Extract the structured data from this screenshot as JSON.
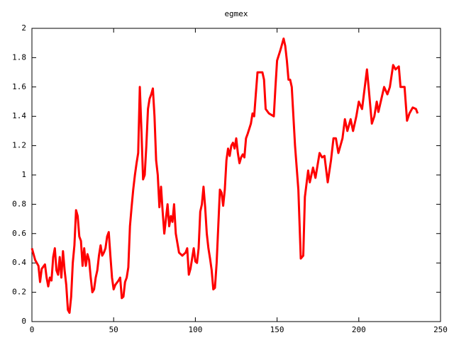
{
  "chart_data": {
    "type": "line",
    "title": "egmex",
    "color": "#ff0000",
    "x": [
      0,
      2,
      4,
      5,
      6,
      8,
      9,
      10,
      11,
      12,
      13,
      14,
      15,
      16,
      17,
      18,
      19,
      20,
      21,
      22,
      23,
      24,
      25,
      26,
      27,
      28,
      29,
      30,
      31,
      32,
      33,
      34,
      35,
      36,
      37,
      38,
      39,
      40,
      41,
      42,
      43,
      44,
      45,
      46,
      47,
      48,
      49,
      50,
      51,
      53,
      54,
      55,
      56,
      57,
      58,
      59,
      60,
      61,
      62,
      63,
      64,
      65,
      66,
      67,
      68,
      69,
      70,
      71,
      72,
      73,
      74,
      75,
      76,
      77,
      78,
      79,
      80,
      81,
      82,
      83,
      84,
      85,
      86,
      87,
      88,
      90,
      92,
      94,
      95,
      96,
      97,
      98,
      99,
      100,
      101,
      102,
      103,
      104,
      105,
      106,
      107,
      108,
      109,
      110,
      111,
      112,
      113,
      114,
      115,
      116,
      117,
      118,
      119,
      120,
      121,
      122,
      123,
      124,
      125,
      126,
      127,
      128,
      129,
      130,
      131,
      132,
      134,
      135,
      136,
      137,
      138,
      141,
      142,
      143,
      145,
      148,
      149,
      150,
      152,
      154,
      155,
      156,
      157,
      158,
      159,
      161,
      163,
      164.5,
      166,
      167,
      169,
      170,
      172,
      173.5,
      176,
      177.5,
      179,
      181,
      183,
      184.5,
      186,
      187.5,
      190,
      191.5,
      193,
      195,
      196.5,
      198.5,
      200,
      202,
      205,
      206,
      208,
      209.5,
      211,
      212,
      215.5,
      217.5,
      219,
      221,
      222.5,
      224.5,
      225.5,
      228,
      229.5,
      231,
      233,
      235,
      236
    ],
    "values": [
      0.5,
      0.42,
      0.38,
      0.27,
      0.36,
      0.39,
      0.3,
      0.24,
      0.3,
      0.28,
      0.44,
      0.5,
      0.35,
      0.32,
      0.44,
      0.3,
      0.48,
      0.35,
      0.25,
      0.08,
      0.06,
      0.17,
      0.4,
      0.52,
      0.76,
      0.72,
      0.58,
      0.55,
      0.38,
      0.5,
      0.38,
      0.46,
      0.42,
      0.3,
      0.2,
      0.22,
      0.3,
      0.35,
      0.45,
      0.52,
      0.45,
      0.47,
      0.5,
      0.58,
      0.61,
      0.45,
      0.3,
      0.22,
      0.25,
      0.28,
      0.3,
      0.16,
      0.17,
      0.27,
      0.3,
      0.37,
      0.65,
      0.78,
      0.9,
      1.0,
      1.08,
      1.15,
      1.6,
      1.3,
      0.97,
      1.0,
      1.2,
      1.45,
      1.52,
      1.55,
      1.59,
      1.4,
      1.1,
      1.0,
      0.78,
      0.92,
      0.75,
      0.6,
      0.7,
      0.8,
      0.65,
      0.72,
      0.68,
      0.8,
      0.6,
      0.47,
      0.45,
      0.47,
      0.5,
      0.32,
      0.36,
      0.43,
      0.5,
      0.41,
      0.4,
      0.5,
      0.75,
      0.8,
      0.92,
      0.78,
      0.6,
      0.5,
      0.43,
      0.35,
      0.22,
      0.23,
      0.4,
      0.65,
      0.9,
      0.88,
      0.79,
      0.9,
      1.1,
      1.18,
      1.13,
      1.2,
      1.22,
      1.18,
      1.25,
      1.15,
      1.08,
      1.12,
      1.14,
      1.12,
      1.25,
      1.28,
      1.35,
      1.42,
      1.4,
      1.55,
      1.7,
      1.7,
      1.65,
      1.45,
      1.42,
      1.4,
      1.6,
      1.78,
      1.85,
      1.93,
      1.88,
      1.78,
      1.65,
      1.65,
      1.6,
      1.2,
      0.9,
      0.43,
      0.45,
      0.85,
      1.03,
      0.95,
      1.05,
      0.98,
      1.15,
      1.12,
      1.13,
      0.95,
      1.1,
      1.25,
      1.25,
      1.15,
      1.25,
      1.38,
      1.3,
      1.38,
      1.3,
      1.4,
      1.5,
      1.45,
      1.72,
      1.6,
      1.35,
      1.4,
      1.5,
      1.43,
      1.6,
      1.55,
      1.6,
      1.75,
      1.72,
      1.74,
      1.6,
      1.6,
      1.37,
      1.42,
      1.46,
      1.45,
      1.42
    ],
    "xlim": [
      0,
      250
    ],
    "ylim": [
      0,
      2
    ],
    "xticks": [
      0,
      50,
      100,
      150,
      200,
      250
    ],
    "yticks": [
      0,
      0.2,
      0.4,
      0.6,
      0.8,
      1,
      1.2,
      1.4,
      1.6,
      1.8,
      2
    ]
  }
}
